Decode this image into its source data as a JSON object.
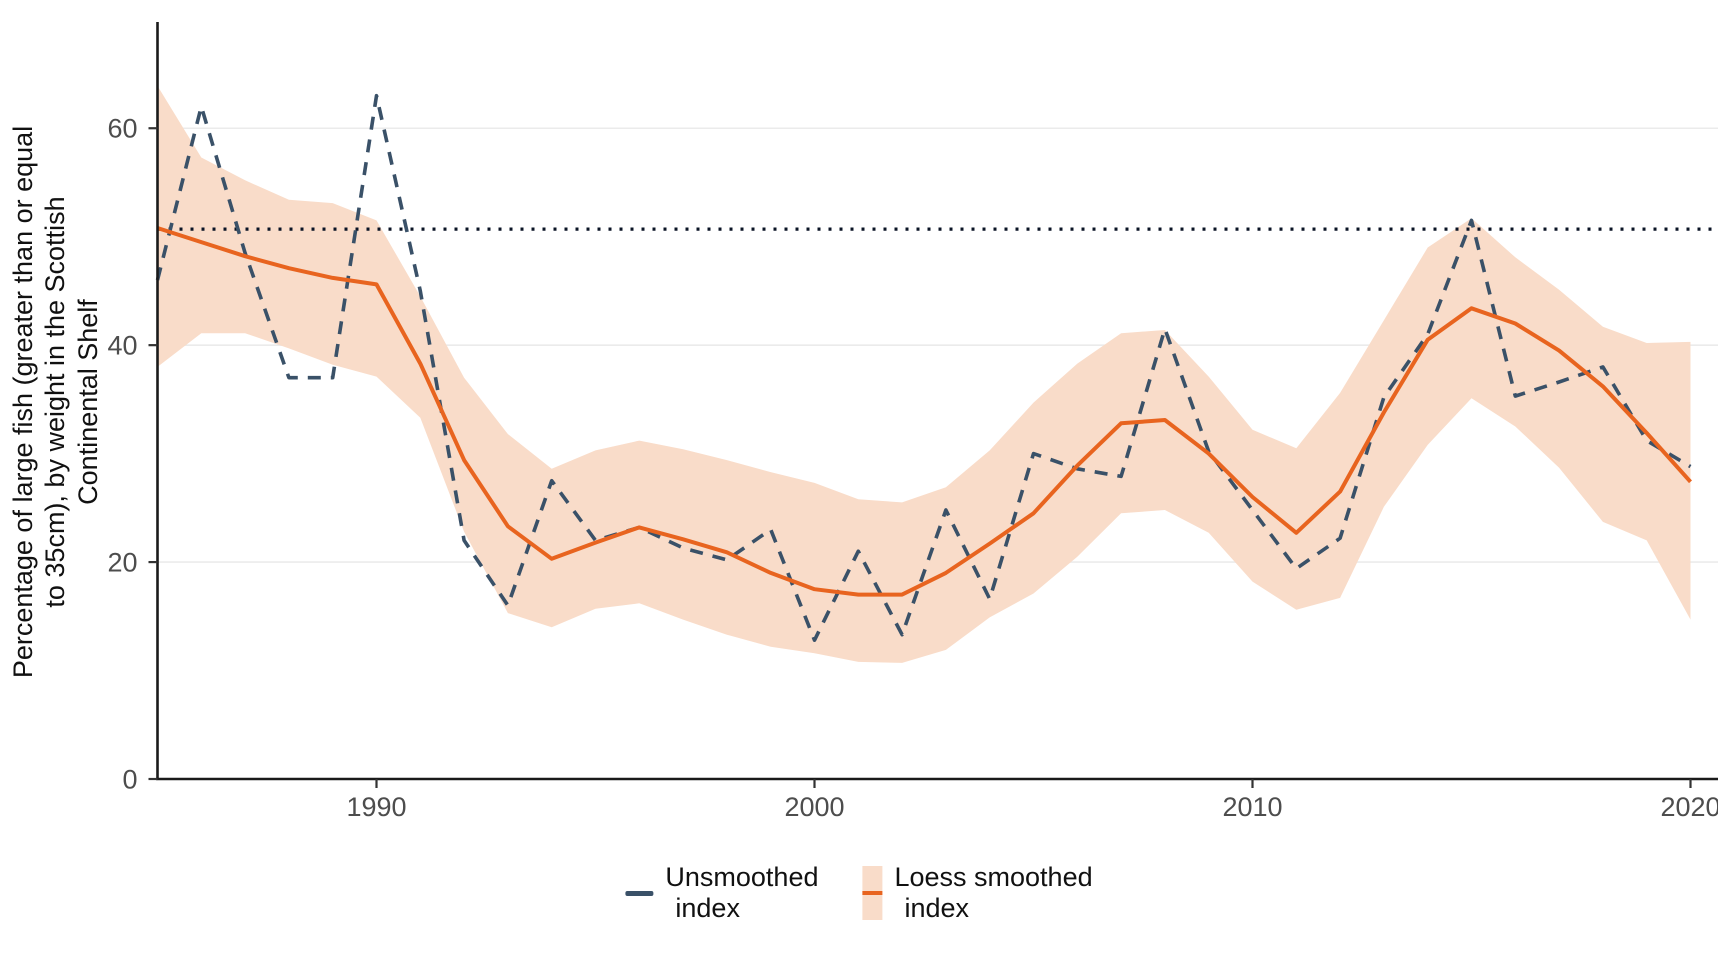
{
  "figure": {
    "y_axis_title_line1": "Percentage of large fish (greater than or equal",
    "y_axis_title_line2": "to 35cm), by weight in the Scottish",
    "y_axis_title_line3": "Continental Shelf",
    "legend": {
      "unsmoothed_line1": "Unsmoothed",
      "unsmoothed_line2": "index",
      "loess_line1": "Loess smoothed",
      "loess_line2": "index"
    }
  },
  "chart_data": {
    "type": "line",
    "title": "",
    "xlabel": "",
    "ylabel": "Percentage of large fish (greater than or equal to 35cm), by weight in the Scottish Continental Shelf",
    "x": [
      1985,
      1986,
      1987,
      1988,
      1989,
      1990,
      1991,
      1992,
      1993,
      1994,
      1995,
      1996,
      1997,
      1998,
      1999,
      2000,
      2001,
      2002,
      2003,
      2004,
      2005,
      2006,
      2007,
      2008,
      2009,
      2010,
      2011,
      2012,
      2013,
      2014,
      2015,
      2016,
      2017,
      2018,
      2019,
      2020
    ],
    "series": [
      {
        "name": "Unsmoothed index",
        "style": "dashed",
        "values": [
          46,
          62,
          48.5,
          37,
          37,
          63,
          45,
          22,
          16,
          27.5,
          22,
          23.2,
          21.3,
          20.2,
          23,
          12.8,
          21,
          13.3,
          24.8,
          16.6,
          30,
          28.6,
          27.9,
          41.5,
          30.2,
          24.8,
          19.4,
          22.2,
          35.2,
          41,
          51.5,
          35.3,
          36.6,
          38,
          31.2,
          28.8
        ]
      },
      {
        "name": "Loess smoothed index",
        "style": "solid",
        "values": [
          50.8,
          49.5,
          48.2,
          47.1,
          46.2,
          45.6,
          38.3,
          29.4,
          23.3,
          20.3,
          21.8,
          23.2,
          22.1,
          20.9,
          19,
          17.5,
          17,
          17,
          19,
          21.7,
          24.5,
          28.9,
          32.8,
          33.1,
          30,
          26,
          22.7,
          26.5,
          33.8,
          40.5,
          43.4,
          42,
          39.5,
          36.2,
          31.9,
          27.4
        ]
      },
      {
        "name": "Loess smoothed band upper",
        "style": "ribbon-upper",
        "values": [
          63.9,
          57.3,
          55.2,
          53.4,
          53.1,
          51.5,
          44.5,
          37,
          31.8,
          28.6,
          30.3,
          31.2,
          30.4,
          29.4,
          28.3,
          27.3,
          25.8,
          25.5,
          26.9,
          30.3,
          34.7,
          38.3,
          41.1,
          41.4,
          37.1,
          32.2,
          30.5,
          35.6,
          42.3,
          49,
          51.7,
          48.1,
          45.1,
          41.7,
          40.2,
          40.3
        ]
      },
      {
        "name": "Loess smoothed band lower",
        "style": "ribbon-lower",
        "values": [
          38,
          41.1,
          41.1,
          39.7,
          38.2,
          37.1,
          33.3,
          22.8,
          15.3,
          14,
          15.7,
          16.2,
          14.7,
          13.3,
          12.2,
          11.6,
          10.8,
          10.7,
          11.9,
          14.9,
          17.1,
          20.5,
          24.5,
          24.8,
          22.7,
          18.2,
          15.6,
          16.7,
          25.1,
          30.8,
          35.1,
          32.5,
          28.7,
          23.7,
          22,
          14.7
        ]
      }
    ],
    "reference_line_y": 50.7,
    "x_ticks": [
      1990,
      2000,
      2010,
      2020
    ],
    "y_ticks": [
      0,
      20,
      40,
      60
    ],
    "xlim": [
      1985,
      2020.6
    ],
    "ylim": [
      0,
      69.8
    ],
    "grid": "horizontal-only",
    "legend_position": "bottom",
    "colors": {
      "unsmoothed": "#3a5168",
      "loess": "#e8641f",
      "ribbon": "#f9dcc9",
      "reference": "#0b1426",
      "grid": "#ebebeb",
      "axis": "#1a1a1a",
      "tick_text": "#4d4d4d"
    }
  }
}
